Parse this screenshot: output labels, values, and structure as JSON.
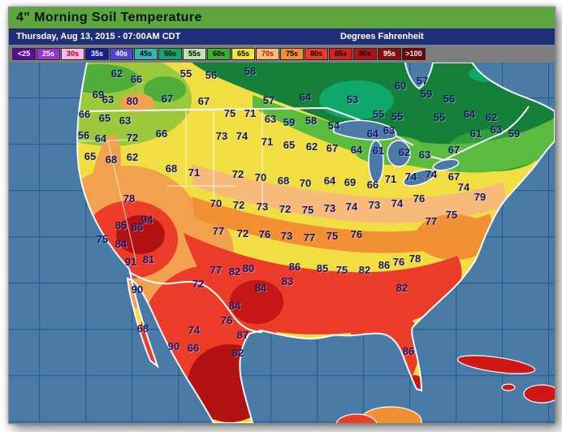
{
  "header": {
    "title": "4\" Morning Soil Temperature",
    "datetime": "Thursday, Aug 13, 2015 - 07:00AM CDT",
    "units_label": "Degrees Fahrenheit"
  },
  "legend": {
    "items": [
      {
        "label": "<25",
        "bg": "#5b0b9b",
        "fg": "#ffffff"
      },
      {
        "label": "25s",
        "bg": "#9734cf",
        "fg": "#ffffff"
      },
      {
        "label": "30s",
        "bg": "#f7b8f0",
        "fg": "#c00000"
      },
      {
        "label": "35s",
        "bg": "#151f9e",
        "fg": "#ffffff"
      },
      {
        "label": "40s",
        "bg": "#4f46d6",
        "fg": "#ffffff"
      },
      {
        "label": "45s",
        "bg": "#2fb8b0",
        "fg": "#000000"
      },
      {
        "label": "50s",
        "bg": "#0fa76a",
        "fg": "#000000"
      },
      {
        "label": "55s",
        "bg": "#b9e6b2",
        "fg": "#000000"
      },
      {
        "label": "60s",
        "bg": "#3fae35",
        "fg": "#000000"
      },
      {
        "label": "65s",
        "bg": "#f2e23a",
        "fg": "#000000"
      },
      {
        "label": "70s",
        "bg": "#f6bb7a",
        "fg": "#b22000"
      },
      {
        "label": "75s",
        "bg": "#f29033",
        "fg": "#000000"
      },
      {
        "label": "80s",
        "bg": "#ea3c28",
        "fg": "#000000"
      },
      {
        "label": "85s",
        "bg": "#d61f1f",
        "fg": "#000000"
      },
      {
        "label": "90s",
        "bg": "#b31212",
        "fg": "#000000"
      },
      {
        "label": "95s",
        "bg": "#8e0b0b",
        "fg": "#ffffff"
      },
      {
        "label": ">100",
        "bg": "#6e0404",
        "fg": "#ffffff"
      }
    ]
  },
  "map": {
    "type": "soil-temperature-contour-map",
    "region": "United States / North America",
    "ocean_color": "#4a7ba6",
    "grid_color": "#2b5d8e",
    "border_color": "#ffffff",
    "station_text_color": "#16166b",
    "stations": [
      [
        133,
        18,
        62
      ],
      [
        157,
        25,
        66
      ],
      [
        110,
        44,
        69
      ],
      [
        122,
        50,
        63
      ],
      [
        152,
        52,
        80
      ],
      [
        195,
        49,
        67
      ],
      [
        240,
        52,
        67
      ],
      [
        218,
        18,
        55
      ],
      [
        249,
        20,
        56
      ],
      [
        297,
        15,
        58
      ],
      [
        320,
        51,
        57
      ],
      [
        365,
        47,
        64
      ],
      [
        93,
        68,
        66
      ],
      [
        118,
        73,
        65
      ],
      [
        143,
        76,
        63
      ],
      [
        92,
        94,
        56
      ],
      [
        113,
        98,
        64
      ],
      [
        152,
        97,
        72
      ],
      [
        188,
        92,
        66
      ],
      [
        100,
        120,
        65
      ],
      [
        126,
        124,
        68
      ],
      [
        152,
        121,
        62
      ],
      [
        148,
        172,
        78
      ],
      [
        272,
        67,
        75
      ],
      [
        297,
        67,
        71
      ],
      [
        322,
        74,
        63
      ],
      [
        345,
        78,
        59
      ],
      [
        372,
        76,
        58
      ],
      [
        400,
        82,
        54
      ],
      [
        262,
        95,
        73
      ],
      [
        287,
        95,
        74
      ],
      [
        318,
        102,
        71
      ],
      [
        200,
        135,
        68
      ],
      [
        228,
        140,
        71
      ],
      [
        282,
        142,
        72
      ],
      [
        310,
        146,
        70
      ],
      [
        423,
        50,
        53
      ],
      [
        455,
        68,
        55
      ],
      [
        478,
        71,
        55
      ],
      [
        482,
        33,
        60
      ],
      [
        509,
        27,
        57
      ],
      [
        514,
        43,
        59
      ],
      [
        542,
        49,
        56
      ],
      [
        567,
        68,
        64
      ],
      [
        594,
        72,
        62
      ],
      [
        448,
        92,
        64
      ],
      [
        468,
        88,
        63
      ],
      [
        345,
        106,
        65
      ],
      [
        373,
        108,
        62
      ],
      [
        398,
        110,
        67
      ],
      [
        428,
        112,
        64
      ],
      [
        455,
        113,
        61
      ],
      [
        487,
        115,
        62
      ],
      [
        512,
        118,
        63
      ],
      [
        338,
        150,
        68
      ],
      [
        365,
        153,
        70
      ],
      [
        395,
        150,
        64
      ],
      [
        420,
        152,
        69
      ],
      [
        448,
        155,
        66
      ],
      [
        470,
        148,
        71
      ],
      [
        530,
        72,
        55
      ],
      [
        575,
        92,
        61
      ],
      [
        600,
        87,
        63
      ],
      [
        622,
        92,
        59
      ],
      [
        548,
        112,
        67
      ],
      [
        495,
        145,
        74
      ],
      [
        520,
        142,
        74
      ],
      [
        548,
        145,
        67
      ],
      [
        560,
        158,
        74
      ],
      [
        580,
        170,
        79
      ],
      [
        255,
        178,
        70
      ],
      [
        283,
        180,
        72
      ],
      [
        312,
        182,
        73
      ],
      [
        340,
        185,
        72
      ],
      [
        368,
        186,
        75
      ],
      [
        395,
        184,
        73
      ],
      [
        422,
        182,
        74
      ],
      [
        450,
        180,
        73
      ],
      [
        478,
        178,
        74
      ],
      [
        505,
        172,
        76
      ],
      [
        258,
        212,
        77
      ],
      [
        288,
        215,
        72
      ],
      [
        315,
        216,
        76
      ],
      [
        342,
        218,
        73
      ],
      [
        370,
        220,
        77
      ],
      [
        398,
        218,
        75
      ],
      [
        428,
        216,
        76
      ],
      [
        520,
        200,
        77
      ],
      [
        545,
        192,
        75
      ],
      [
        255,
        260,
        77
      ],
      [
        278,
        262,
        82
      ],
      [
        295,
        258,
        80
      ],
      [
        310,
        282,
        84
      ],
      [
        343,
        274,
        83
      ],
      [
        352,
        256,
        86
      ],
      [
        386,
        258,
        85
      ],
      [
        410,
        260,
        75
      ],
      [
        438,
        260,
        82
      ],
      [
        462,
        254,
        86
      ],
      [
        480,
        250,
        76
      ],
      [
        500,
        246,
        78
      ],
      [
        484,
        282,
        82
      ],
      [
        492,
        360,
        86
      ],
      [
        138,
        205,
        85
      ],
      [
        158,
        207,
        86
      ],
      [
        170,
        198,
        94
      ],
      [
        115,
        222,
        75
      ],
      [
        138,
        228,
        84
      ],
      [
        172,
        247,
        81
      ],
      [
        150,
        250,
        91
      ],
      [
        158,
        284,
        90
      ],
      [
        233,
        277,
        72
      ],
      [
        165,
        332,
        68
      ],
      [
        228,
        334,
        74
      ],
      [
        203,
        354,
        90
      ],
      [
        227,
        356,
        66
      ],
      [
        268,
        322,
        76
      ],
      [
        278,
        304,
        84
      ],
      [
        288,
        340,
        87
      ],
      [
        282,
        362,
        82
      ]
    ]
  }
}
